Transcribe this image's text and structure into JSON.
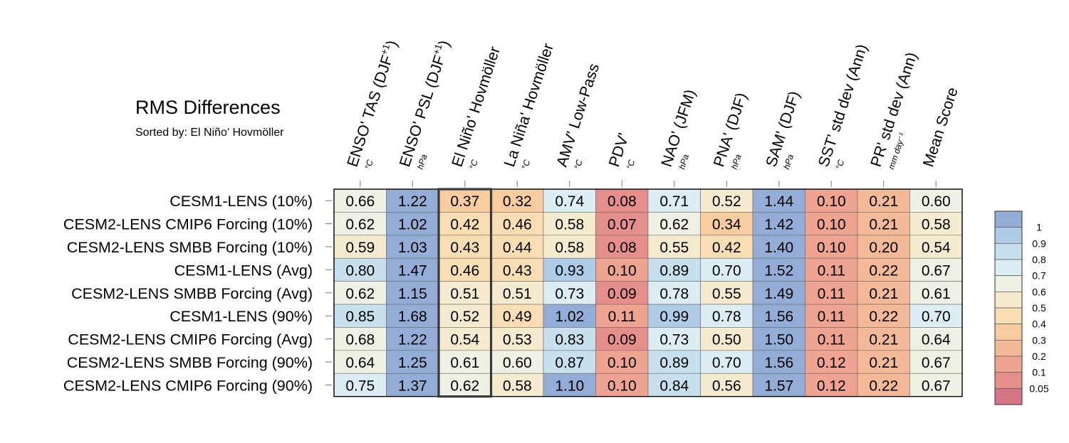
{
  "chart_data": {
    "type": "heatmap",
    "title": "RMS Differences",
    "subtitle": "Sorted by: El Niño' Hovmöller",
    "highlight_column": 2,
    "columns": [
      {
        "label": "ENSO' TAS (DJF",
        "sup": "+1",
        "close": ")",
        "unit": "°C"
      },
      {
        "label": "ENSO' PSL (DJF",
        "sup": "+1",
        "close": ")",
        "unit": "hPa"
      },
      {
        "label": "El Niño' Hovmöller",
        "sup": "",
        "close": "",
        "unit": "°C"
      },
      {
        "label": "La Niña' Hovmöller",
        "sup": "",
        "close": "",
        "unit": "°C"
      },
      {
        "label": "AMV' Low-Pass",
        "sup": "",
        "close": "",
        "unit": "°C"
      },
      {
        "label": "PDV'",
        "sup": "",
        "close": "",
        "unit": "°C"
      },
      {
        "label": "NAO' (JFM)",
        "sup": "",
        "close": "",
        "unit": "hPa"
      },
      {
        "label": "PNA' (DJF)",
        "sup": "",
        "close": "",
        "unit": "hPa"
      },
      {
        "label": "SAM' (DJF)",
        "sup": "",
        "close": "",
        "unit": "hPa"
      },
      {
        "label": "SST' std dev (Ann)",
        "sup": "",
        "close": "",
        "unit": "°C"
      },
      {
        "label": "PR' std dev (Ann)",
        "sup": "",
        "close": "",
        "unit": "mm day⁻¹"
      },
      {
        "label": "Mean Score",
        "sup": "",
        "close": "",
        "unit": ""
      }
    ],
    "rows": [
      "CESM1-LENS (10%)",
      "CESM2-LENS CMIP6 Forcing (10%)",
      "CESM2-LENS SMBB Forcing (10%)",
      "CESM1-LENS (Avg)",
      "CESM2-LENS SMBB Forcing (Avg)",
      "CESM1-LENS (90%)",
      "CESM2-LENS CMIP6 Forcing (Avg)",
      "CESM2-LENS SMBB Forcing (90%)",
      "CESM2-LENS CMIP6 Forcing (90%)"
    ],
    "values": [
      [
        "0.66",
        "1.22",
        "0.37",
        "0.32",
        "0.74",
        "0.08",
        "0.71",
        "0.52",
        "1.44",
        "0.10",
        "0.21",
        "0.60"
      ],
      [
        "0.62",
        "1.02",
        "0.42",
        "0.46",
        "0.58",
        "0.07",
        "0.62",
        "0.34",
        "1.42",
        "0.10",
        "0.21",
        "0.58"
      ],
      [
        "0.59",
        "1.03",
        "0.43",
        "0.44",
        "0.58",
        "0.08",
        "0.55",
        "0.42",
        "1.40",
        "0.10",
        "0.20",
        "0.54"
      ],
      [
        "0.80",
        "1.47",
        "0.46",
        "0.43",
        "0.93",
        "0.10",
        "0.89",
        "0.70",
        "1.52",
        "0.11",
        "0.22",
        "0.67"
      ],
      [
        "0.62",
        "1.15",
        "0.51",
        "0.51",
        "0.73",
        "0.09",
        "0.78",
        "0.55",
        "1.49",
        "0.11",
        "0.21",
        "0.61"
      ],
      [
        "0.85",
        "1.68",
        "0.52",
        "0.49",
        "1.02",
        "0.11",
        "0.99",
        "0.78",
        "1.56",
        "0.11",
        "0.22",
        "0.70"
      ],
      [
        "0.68",
        "1.22",
        "0.54",
        "0.53",
        "0.83",
        "0.09",
        "0.73",
        "0.50",
        "1.50",
        "0.11",
        "0.21",
        "0.64"
      ],
      [
        "0.64",
        "1.25",
        "0.61",
        "0.60",
        "0.87",
        "0.10",
        "0.89",
        "0.70",
        "1.56",
        "0.12",
        "0.21",
        "0.67"
      ],
      [
        "0.75",
        "1.37",
        "0.62",
        "0.58",
        "1.10",
        "0.10",
        "0.84",
        "0.56",
        "1.57",
        "0.12",
        "0.22",
        "0.67"
      ]
    ],
    "colorbar": {
      "thresholds": [
        0.05,
        0.1,
        0.2,
        0.3,
        0.4,
        0.5,
        0.6,
        0.7,
        0.8,
        0.9,
        1
      ],
      "labels": [
        "1",
        "0.9",
        "0.8",
        "0.7",
        "0.6",
        "0.5",
        "0.4",
        "0.3",
        "0.2",
        "0.1",
        "0.05"
      ],
      "colors": [
        "#d67585",
        "#e58f8d",
        "#eea491",
        "#f4b997",
        "#f7cc9f",
        "#f8deb2",
        "#f6ebcf",
        "#eef1e3",
        "#dcedf3",
        "#c6e0ee",
        "#aecce6",
        "#93add6"
      ]
    }
  }
}
